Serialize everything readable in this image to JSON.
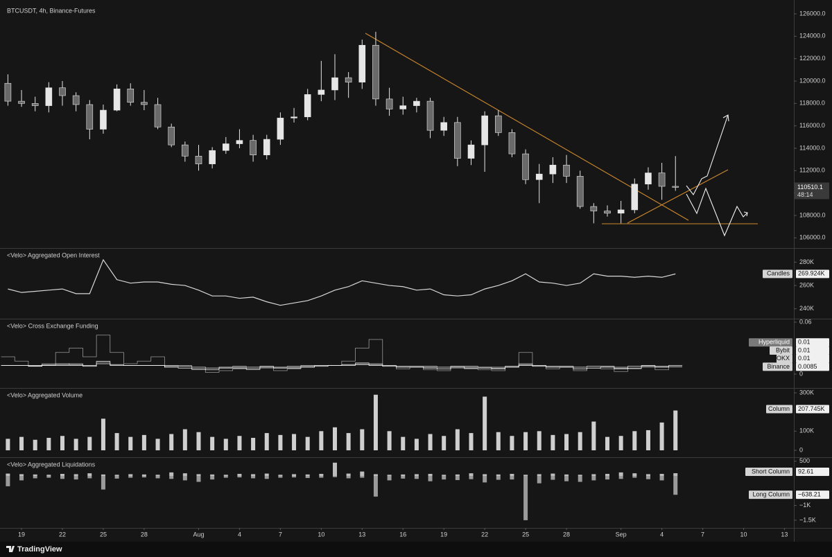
{
  "chart_data": [
    {
      "type": "candlestick",
      "title": "BTCUSDT, 4h, Binance-Futures",
      "x": [
        -1,
        0,
        1,
        2,
        3,
        4,
        5,
        6,
        7,
        8,
        9,
        10,
        11,
        12,
        13,
        14,
        15,
        16,
        17,
        18,
        19,
        20,
        21,
        22,
        23,
        24,
        25,
        26,
        27,
        28,
        29,
        30,
        31,
        32,
        33,
        34,
        35,
        36,
        37,
        38,
        39,
        40,
        41,
        42,
        43,
        44,
        45,
        46,
        47,
        48
      ],
      "open": [
        119800,
        118200,
        118000,
        117800,
        119400,
        118700,
        117900,
        115700,
        117400,
        119300,
        118100,
        117900,
        115900,
        114300,
        113300,
        112600,
        113800,
        114400,
        114700,
        113400,
        114800,
        116700,
        116800,
        118800,
        119200,
        120300,
        119900,
        123200,
        118400,
        117500,
        117800,
        118200,
        115600,
        116300,
        113100,
        114300,
        116900,
        115400,
        113500,
        111200,
        111700,
        112500,
        111500,
        108800,
        108400,
        108200,
        108500,
        110800,
        111800,
        110600
      ],
      "high": [
        120600,
        119200,
        118600,
        119900,
        120000,
        119000,
        118300,
        117900,
        119700,
        119800,
        119200,
        118500,
        116200,
        114600,
        114300,
        114100,
        115000,
        115700,
        115200,
        115200,
        117200,
        117600,
        119300,
        121800,
        122400,
        120800,
        123700,
        124400,
        119400,
        118600,
        118500,
        118500,
        116800,
        116800,
        114700,
        117300,
        117400,
        115700,
        113900,
        112600,
        113200,
        113400,
        112000,
        109100,
        108900,
        109300,
        111300,
        112300,
        112700,
        113300
      ],
      "low": [
        117800,
        117700,
        117300,
        117200,
        117800,
        117300,
        114800,
        115300,
        117300,
        117800,
        117400,
        115700,
        114100,
        112800,
        112000,
        112200,
        113500,
        114000,
        112800,
        113000,
        114300,
        116300,
        116500,
        118200,
        118300,
        118500,
        119300,
        117800,
        116900,
        117000,
        117200,
        114900,
        115100,
        112400,
        112500,
        111900,
        115100,
        113200,
        110800,
        109100,
        110900,
        110900,
        108600,
        107300,
        107900,
        107300,
        108200,
        110300,
        109400,
        110200
      ],
      "close": [
        118200,
        118000,
        117800,
        119400,
        118700,
        117900,
        115700,
        117400,
        119300,
        118100,
        117900,
        115900,
        114300,
        113300,
        112600,
        113800,
        114400,
        114700,
        113400,
        114800,
        116700,
        116800,
        118800,
        119200,
        120300,
        119900,
        123200,
        118400,
        117500,
        117800,
        118200,
        115600,
        116300,
        113100,
        114300,
        116900,
        115400,
        113500,
        111200,
        111700,
        112500,
        111500,
        108800,
        108400,
        108200,
        108500,
        110800,
        111800,
        110600,
        110510.1
      ],
      "up_color": "#e6e6e6",
      "down_color": "#6a6a6a",
      "countdown": "48:14",
      "xlim": [
        -1.58,
        56.69
      ],
      "xticks": [
        {
          "value": 0,
          "label": "19"
        },
        {
          "value": 3,
          "label": "22"
        },
        {
          "value": 6,
          "label": "25"
        },
        {
          "value": 9,
          "label": "28"
        },
        {
          "value": 13,
          "label": "Aug"
        },
        {
          "value": 16,
          "label": "4"
        },
        {
          "value": 19,
          "label": "7"
        },
        {
          "value": 22,
          "label": "10"
        },
        {
          "value": 25,
          "label": "13"
        },
        {
          "value": 28,
          "label": "16"
        },
        {
          "value": 31,
          "label": "19"
        },
        {
          "value": 34,
          "label": "22"
        },
        {
          "value": 37,
          "label": "25"
        },
        {
          "value": 40,
          "label": "28"
        },
        {
          "value": 44,
          "label": "Sep"
        },
        {
          "value": 47,
          "label": "4"
        },
        {
          "value": 50,
          "label": "7"
        },
        {
          "value": 53,
          "label": "10"
        },
        {
          "value": 56,
          "label": "13"
        }
      ],
      "ylim": [
        105093,
        127237
      ],
      "yticks": [
        {
          "value": 106000,
          "label": "106000.0"
        },
        {
          "value": 108000,
          "label": "108000.0"
        },
        {
          "value": 110000,
          "label": "110000.0"
        },
        {
          "value": 112000,
          "label": "112000.0"
        },
        {
          "value": 114000,
          "label": "114000.0"
        },
        {
          "value": 116000,
          "label": "116000.0"
        },
        {
          "value": 118000,
          "label": "118000.0"
        },
        {
          "value": 120000,
          "label": "120000.0"
        },
        {
          "value": 122000,
          "label": "122000.0"
        },
        {
          "value": 124000,
          "label": "124000.0"
        },
        {
          "value": 126000,
          "label": "126000.0"
        }
      ]
    },
    {
      "type": "line",
      "title": "<Velo> Aggregated Open Interest",
      "series": [
        {
          "name": "Candles",
          "color": "#d8d8d8",
          "last_label": "269.924K",
          "values": [
            257000,
            254000,
            255000,
            256000,
            257000,
            253000,
            253000,
            282000,
            265000,
            262000,
            263000,
            263000,
            261000,
            260000,
            256000,
            251000,
            251000,
            249000,
            250000,
            246000,
            243000,
            245000,
            247000,
            251000,
            256000,
            259000,
            264000,
            262000,
            260000,
            259000,
            256000,
            257000,
            252000,
            251000,
            252000,
            257000,
            260000,
            264000,
            270000,
            263000,
            262000,
            260000,
            262000,
            270000,
            268000,
            268000,
            267000,
            268000,
            267000,
            269924
          ]
        }
      ],
      "ylim": [
        231515,
        292121
      ],
      "yticks": [
        {
          "value": 280000,
          "label": "280K"
        },
        {
          "value": 260000,
          "label": "260K"
        },
        {
          "value": 240000,
          "label": "240K"
        }
      ]
    },
    {
      "type": "step",
      "title": "<Velo> Cross Exchange Funding",
      "series": [
        {
          "name": "Hyperliquid",
          "color": "#9a9a9a",
          "values": [
            0.02,
            0.015,
            0.01,
            0.012,
            0.025,
            0.03,
            0.02,
            0.045,
            0.025,
            0.012,
            0.015,
            0.02,
            0.01,
            0.01,
            0.005,
            0.002,
            0.004,
            0.006,
            0.005,
            0.007,
            0.004,
            0.006,
            0.008,
            0.01,
            0.01,
            0.015,
            0.03,
            0.04,
            0.01,
            0.006,
            0.008,
            0.005,
            0.004,
            0.007,
            0.006,
            0.005,
            0.004,
            0.008,
            0.025,
            0.01,
            0.006,
            0.008,
            0.004,
            0.007,
            0.006,
            0.003,
            0.006,
            0.008,
            0.005,
            0.01
          ]
        },
        {
          "name": "Bybit",
          "color": "#bdbdbd",
          "values": [
            0.01,
            0.01,
            0.0095,
            0.01,
            0.011,
            0.012,
            0.01,
            0.015,
            0.011,
            0.01,
            0.01,
            0.01,
            0.01,
            0.009,
            0.008,
            0.007,
            0.008,
            0.009,
            0.008,
            0.009,
            0.008,
            0.009,
            0.01,
            0.01,
            0.01,
            0.011,
            0.013,
            0.012,
            0.01,
            0.009,
            0.009,
            0.008,
            0.008,
            0.009,
            0.008,
            0.008,
            0.007,
            0.009,
            0.012,
            0.01,
            0.009,
            0.009,
            0.008,
            0.009,
            0.009,
            0.007,
            0.009,
            0.01,
            0.009,
            0.01
          ]
        },
        {
          "name": "OKX",
          "color": "#d0d0d0",
          "values": [
            0.01,
            0.01,
            0.01,
            0.011,
            0.012,
            0.011,
            0.01,
            0.014,
            0.011,
            0.01,
            0.01,
            0.01,
            0.009,
            0.009,
            0.008,
            0.007,
            0.008,
            0.008,
            0.008,
            0.009,
            0.008,
            0.008,
            0.009,
            0.01,
            0.01,
            0.011,
            0.012,
            0.011,
            0.01,
            0.009,
            0.009,
            0.009,
            0.008,
            0.009,
            0.009,
            0.008,
            0.008,
            0.009,
            0.011,
            0.01,
            0.009,
            0.009,
            0.008,
            0.009,
            0.009,
            0.008,
            0.009,
            0.01,
            0.009,
            0.01
          ]
        },
        {
          "name": "Binance",
          "color": "#ffffff",
          "values": [
            0.01,
            0.01,
            0.009,
            0.01,
            0.01,
            0.01,
            0.009,
            0.012,
            0.01,
            0.01,
            0.01,
            0.01,
            0.008,
            0.007,
            0.006,
            0.005,
            0.007,
            0.007,
            0.006,
            0.008,
            0.007,
            0.007,
            0.008,
            0.009,
            0.01,
            0.01,
            0.011,
            0.01,
            0.009,
            0.008,
            0.008,
            0.007,
            0.006,
            0.008,
            0.007,
            0.007,
            0.006,
            0.008,
            0.01,
            0.009,
            0.008,
            0.008,
            0.006,
            0.007,
            0.008,
            0.006,
            0.007,
            0.009,
            0.008,
            0.0085
          ]
        }
      ],
      "ylim": [
        -0.016,
        0.064
      ],
      "yticks": [
        0.06,
        0
      ]
    },
    {
      "type": "bar",
      "title": "<Velo> Aggregated Volume",
      "series": [
        {
          "name": "Column",
          "color": "#cfcfcf",
          "last_label": "207.745K",
          "values": [
            60000,
            70000,
            55000,
            65000,
            75000,
            60000,
            70000,
            165000,
            90000,
            70000,
            80000,
            60000,
            85000,
            110000,
            95000,
            70000,
            60000,
            75000,
            65000,
            90000,
            80000,
            85000,
            70000,
            100000,
            120000,
            90000,
            110000,
            290000,
            100000,
            70000,
            60000,
            85000,
            75000,
            110000,
            90000,
            280000,
            95000,
            75000,
            95000,
            100000,
            80000,
            85000,
            95000,
            150000,
            70000,
            75000,
            100000,
            105000,
            145000,
            207745
          ]
        }
      ],
      "ylim": [
        -36145,
        325301
      ],
      "yticks": [
        {
          "value": 300000,
          "label": "300K"
        },
        {
          "value": 100000,
          "label": "100K"
        },
        0
      ]
    },
    {
      "type": "bar",
      "title": "<Velo> Aggregated Liquidations",
      "series": [
        {
          "name": "Short Column",
          "color": "#bdbdbd",
          "values": [
            80,
            60,
            50,
            40,
            70,
            60,
            90,
            50,
            40,
            60,
            50,
            40,
            120,
            90,
            60,
            50,
            40,
            70,
            60,
            80,
            40,
            60,
            50,
            70,
            450,
            80,
            150,
            60,
            40,
            50,
            60,
            70,
            40,
            50,
            90,
            60,
            50,
            70,
            40,
            60,
            80,
            50,
            40,
            60,
            70,
            120,
            90,
            60,
            70,
            92.61
          ]
        },
        {
          "name": "Long Column",
          "color": "#9a9a9a",
          "last_label": "−638.21",
          "values": [
            -350,
            -150,
            -80,
            -60,
            -100,
            -120,
            -80,
            -460,
            -90,
            -60,
            -50,
            -80,
            -100,
            -150,
            -200,
            -120,
            -60,
            -50,
            -80,
            -100,
            -60,
            -50,
            -70,
            -60,
            -40,
            -80,
            -60,
            -700,
            -150,
            -90,
            -100,
            -180,
            -120,
            -140,
            -110,
            -220,
            -130,
            -120,
            -1500,
            -250,
            -130,
            -180,
            -200,
            -150,
            -120,
            -100,
            -60,
            -110,
            -150,
            -638.21
          ]
        }
      ],
      "ylim": [
        -1761,
        634
      ],
      "yticks": [
        500,
        {
          "value": -1000,
          "label": "−1K"
        },
        {
          "value": -1500,
          "label": "−1.5K"
        }
      ]
    }
  ],
  "branding": "TradingView"
}
